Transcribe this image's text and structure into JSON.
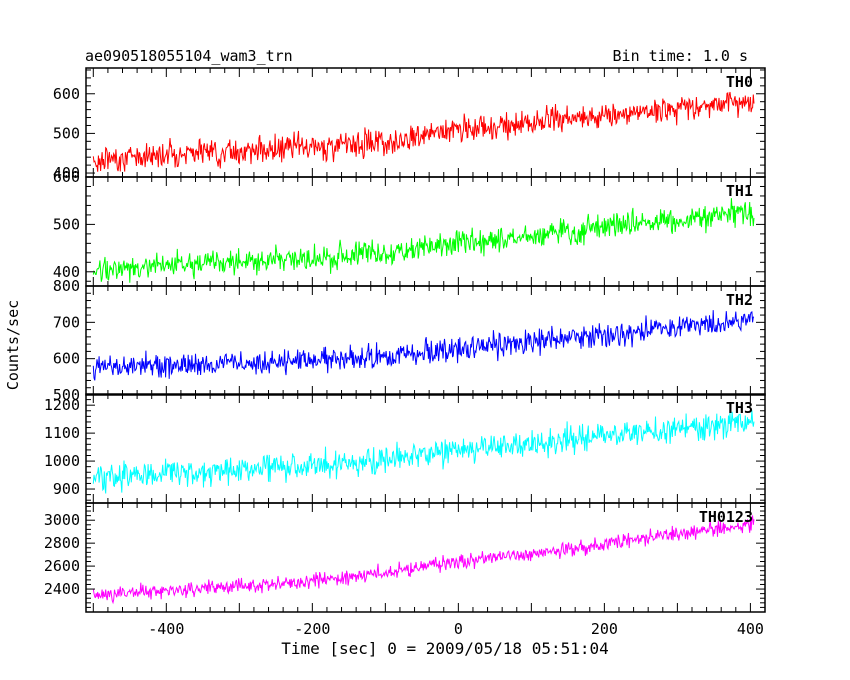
{
  "chart_data": {
    "type": "line",
    "title": "ae090518055104_wam3_trn",
    "subtitle": "Bin time: 1.0 s",
    "xlabel": "Time [sec] 0 = 2009/05/18 05:51:04",
    "ylabel": "Counts/sec",
    "xlim": [
      -510,
      420
    ],
    "xticks": [
      -400,
      -200,
      0,
      200,
      400
    ],
    "panels": [
      {
        "name": "TH0",
        "color": "#ff0000",
        "ylim": [
          390,
          665
        ],
        "yticks": [
          400,
          500,
          600
        ],
        "x": [
          -500,
          -400,
          -300,
          -200,
          -100,
          0,
          100,
          200,
          300,
          400
        ],
        "y": [
          430,
          450,
          455,
          465,
          480,
          510,
          525,
          545,
          565,
          580
        ],
        "noise": 30
      },
      {
        "name": "TH1",
        "color": "#00ff00",
        "ylim": [
          370,
          600
        ],
        "yticks": [
          400,
          500,
          600
        ],
        "x": [
          -500,
          -400,
          -300,
          -200,
          -100,
          0,
          100,
          200,
          300,
          400
        ],
        "y": [
          400,
          415,
          420,
          430,
          440,
          460,
          475,
          495,
          510,
          525
        ],
        "noise": 25
      },
      {
        "name": "TH2",
        "color": "#0000ff",
        "ylim": [
          500,
          800
        ],
        "yticks": [
          500,
          600,
          700,
          800
        ],
        "x": [
          -500,
          -400,
          -300,
          -200,
          -100,
          0,
          100,
          200,
          300,
          400
        ],
        "y": [
          575,
          580,
          585,
          595,
          605,
          625,
          645,
          665,
          685,
          705
        ],
        "noise": 30
      },
      {
        "name": "TH3",
        "color": "#00ffff",
        "ylim": [
          850,
          1240
        ],
        "yticks": [
          900,
          1000,
          1100,
          1200
        ],
        "x": [
          -500,
          -400,
          -300,
          -200,
          -100,
          0,
          100,
          200,
          300,
          400
        ],
        "y": [
          940,
          955,
          970,
          985,
          1005,
          1035,
          1060,
          1090,
          1115,
          1140
        ],
        "noise": 45
      },
      {
        "name": "TH0123",
        "color": "#ff00ff",
        "ylim": [
          2200,
          3150
        ],
        "yticks": [
          2400,
          2600,
          2800,
          3000
        ],
        "x": [
          -500,
          -400,
          -300,
          -200,
          -100,
          0,
          100,
          200,
          300,
          400
        ],
        "y": [
          2340,
          2390,
          2420,
          2470,
          2540,
          2640,
          2700,
          2790,
          2880,
          2960
        ],
        "noise": 60
      }
    ]
  }
}
